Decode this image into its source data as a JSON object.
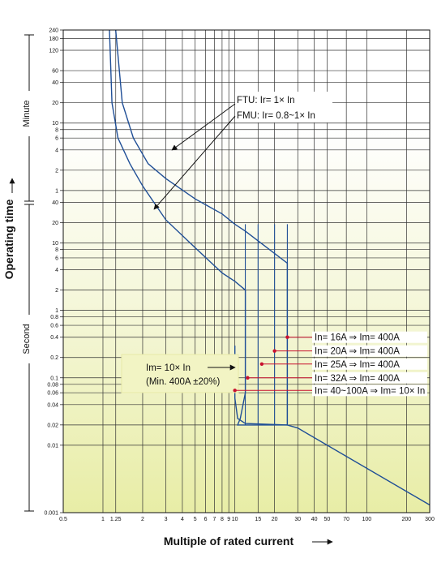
{
  "chart_data": {
    "type": "line",
    "xlabel": "Multiple of rated current",
    "ylabel": "Operating time",
    "x_scale": "log",
    "y_scale": "log",
    "xlim": [
      0.5,
      300
    ],
    "ylim_seconds": [
      0.001,
      14400
    ],
    "x_ticks": [
      {
        "v": 0.5,
        "label": "0.5"
      },
      {
        "v": 1,
        "label": "1"
      },
      {
        "v": 1.25,
        "label": "1.25"
      },
      {
        "v": 2,
        "label": "2"
      },
      {
        "v": 3,
        "label": "3"
      },
      {
        "v": 4,
        "label": "4"
      },
      {
        "v": 5,
        "label": "5"
      },
      {
        "v": 6,
        "label": "6"
      },
      {
        "v": 7,
        "label": "7"
      },
      {
        "v": 8,
        "label": "8"
      },
      {
        "v": 9,
        "label": "9"
      },
      {
        "v": 10,
        "label": "10"
      },
      {
        "v": 15,
        "label": "15"
      },
      {
        "v": 20,
        "label": "20"
      },
      {
        "v": 30,
        "label": "30"
      },
      {
        "v": 40,
        "label": "40"
      },
      {
        "v": 50,
        "label": "50"
      },
      {
        "v": 70,
        "label": "70"
      },
      {
        "v": 100,
        "label": "100"
      },
      {
        "v": 200,
        "label": "200"
      },
      {
        "v": 300,
        "label": "300"
      }
    ],
    "y_ticks_minutes": [
      "240",
      "180",
      "120",
      "60",
      "40",
      "20",
      "10",
      "8",
      "6",
      "4",
      "2",
      "1"
    ],
    "y_ticks_seconds": [
      "40",
      "20",
      "10",
      "8",
      "6",
      "4",
      "2",
      "1",
      "0.8",
      "0.6",
      "0.4",
      "0.2",
      "0.1",
      "0.08",
      "0.06",
      "0.04",
      "0.02",
      "0.01",
      "0.001"
    ],
    "y_group_labels": {
      "minute": "Minute",
      "second": "Second"
    },
    "series": [
      {
        "name": "FTU: Ir= 1× In",
        "points": [
          [
            1.25,
            14400
          ],
          [
            1.4,
            1200
          ],
          [
            1.7,
            360
          ],
          [
            2.2,
            150
          ],
          [
            3,
            90
          ],
          [
            5,
            45
          ],
          [
            8,
            27
          ],
          [
            10,
            19
          ],
          [
            12,
            15
          ],
          [
            25,
            5
          ],
          [
            25,
            0.02
          ],
          [
            12,
            0.021
          ],
          [
            10.5,
            0.025
          ],
          [
            10,
            0.05
          ],
          [
            10,
            0.3
          ]
        ]
      },
      {
        "name": "FMU: Ir= 0.8~1× In",
        "points": [
          [
            1.12,
            14400
          ],
          [
            1.17,
            1200
          ],
          [
            1.3,
            360
          ],
          [
            1.6,
            150
          ],
          [
            2,
            70
          ],
          [
            3,
            22
          ],
          [
            5,
            8.5
          ],
          [
            8,
            3.6
          ],
          [
            10,
            2.7
          ],
          [
            12,
            2
          ],
          [
            12,
            0.06
          ],
          [
            11,
            0.025
          ],
          [
            10.5,
            0.02
          ],
          [
            25,
            0.02
          ],
          [
            30,
            0.018
          ],
          [
            300,
            0.0013
          ]
        ]
      }
    ],
    "setting_lines_x": [
      12,
      15,
      20,
      25
    ],
    "annotations": {
      "im_rule": "Im= 10× In",
      "im_min": "(Min. 400A ±20%)",
      "ratings": [
        {
          "text": "In= 16A ⇒ Im= 400A",
          "x": 25,
          "y": 0.4
        },
        {
          "text": "In= 20A ⇒ Im= 400A",
          "x": 20,
          "y": 0.25
        },
        {
          "text": "In= 25A ⇒ Im= 400A",
          "x": 16,
          "y": 0.16
        },
        {
          "text": "In= 32A ⇒ Im= 400A",
          "x": 12.5,
          "y": 0.1
        },
        {
          "text": "In= 40~100A ⇒ Im= 10× In",
          "x": 10,
          "y": 0.065
        }
      ]
    }
  }
}
